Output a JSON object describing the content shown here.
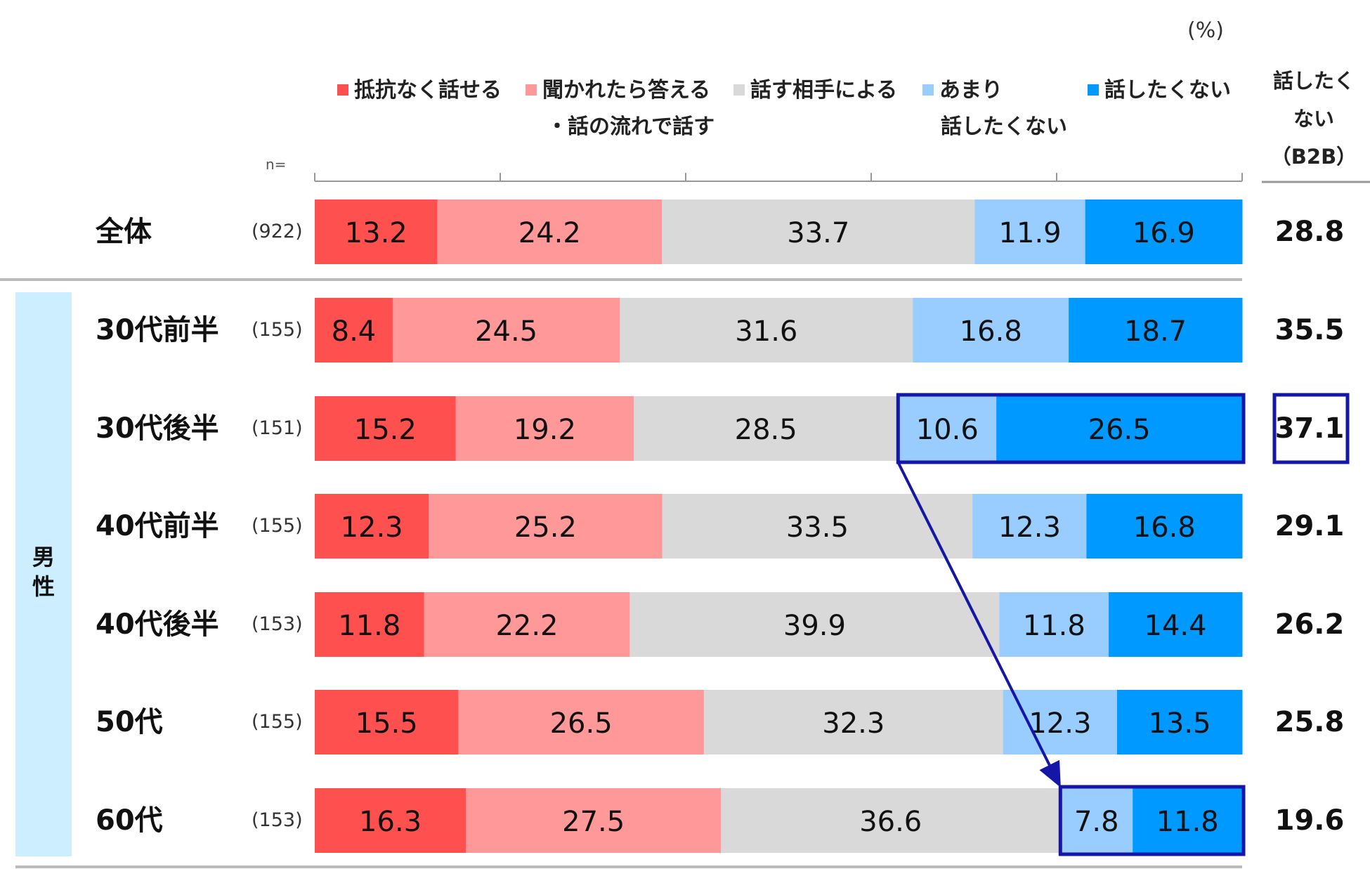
{
  "unit_label": "(%)",
  "n_label": "n=",
  "legend": [
    {
      "line1": "抵抗なく話せる",
      "line2": "",
      "color": "#ff5050"
    },
    {
      "line1": "聞かれたら答える",
      "line2": "・話の流れで話す",
      "color": "#ff9999"
    },
    {
      "line1": "話す相手による",
      "line2": "",
      "color": "#d9d9d9"
    },
    {
      "line1": "あまり",
      "line2": "話したくない",
      "color": "#99ccff"
    },
    {
      "line1": "話したくない",
      "line2": "",
      "color": "#0099ff"
    }
  ],
  "b2b_header": {
    "line1": "話したく",
    "line2": "ない",
    "line3": "（B2B）"
  },
  "group_label": {
    "char1": "男",
    "char2": "性"
  },
  "chart_data": {
    "type": "stacked_bar_horizontal",
    "unit": "%",
    "xlim": [
      0,
      100
    ],
    "series_names": [
      "抵抗なく話せる",
      "聞かれたら答える・話の流れで話す",
      "話す相手による",
      "あまり話したくない",
      "話したくない"
    ],
    "rows": [
      {
        "label": "全体",
        "n": "(922)",
        "values": [
          13.2,
          24.2,
          33.7,
          11.9,
          16.9
        ],
        "b2b": "28.8"
      },
      {
        "label": "30代前半",
        "n": "(155)",
        "values": [
          8.4,
          24.5,
          31.6,
          16.8,
          18.7
        ],
        "b2b": "35.5"
      },
      {
        "label": "30代後半",
        "n": "(151)",
        "values": [
          15.2,
          19.2,
          28.5,
          10.6,
          26.5
        ],
        "b2b": "37.1"
      },
      {
        "label": "40代前半",
        "n": "(155)",
        "values": [
          12.3,
          25.2,
          33.5,
          12.3,
          16.8
        ],
        "b2b": "29.1"
      },
      {
        "label": "40代後半",
        "n": "(153)",
        "values": [
          11.8,
          22.2,
          39.9,
          11.8,
          14.4
        ],
        "b2b": "26.2"
      },
      {
        "label": "50代",
        "n": "(155)",
        "values": [
          15.5,
          26.5,
          32.3,
          12.3,
          13.5
        ],
        "b2b": "25.8"
      },
      {
        "label": "60代",
        "n": "(153)",
        "values": [
          16.3,
          27.5,
          36.6,
          7.8,
          11.8
        ],
        "b2b": "19.6"
      }
    ],
    "highlight_rows": [
      2,
      6
    ],
    "highlight_b2b_row": 2,
    "annotation": "arrow from 30代後半 highlight to 60代 highlight"
  },
  "colors": {
    "highlight": "#1515a8",
    "divider": "#bbbbbb",
    "axis": "#999999",
    "group_bg": "#cdeeff"
  }
}
